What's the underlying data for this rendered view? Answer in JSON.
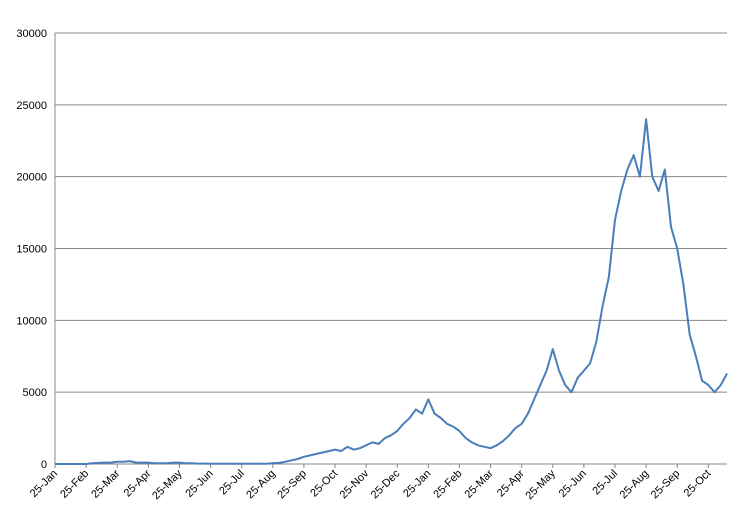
{
  "chart_data": {
    "type": "line",
    "categories": [
      "25-Jan",
      null,
      null,
      null,
      null,
      "25-Feb",
      null,
      null,
      null,
      null,
      "25-Mar",
      null,
      null,
      null,
      null,
      "25-Apr",
      null,
      null,
      null,
      null,
      "25-May",
      null,
      null,
      null,
      null,
      "25-Jun",
      null,
      null,
      null,
      null,
      "25-Jul",
      null,
      null,
      null,
      null,
      "25-Aug",
      null,
      null,
      null,
      null,
      "25-Sep",
      null,
      null,
      null,
      null,
      "25-Oct",
      null,
      null,
      null,
      null,
      "25-Nov",
      null,
      null,
      null,
      null,
      "25-Dec",
      null,
      null,
      null,
      null,
      "25-Jan",
      null,
      null,
      null,
      null,
      "25-Feb",
      null,
      null,
      null,
      null,
      "25-Mar",
      null,
      null,
      null,
      null,
      "25-Apr",
      null,
      null,
      null,
      null,
      "25-May",
      null,
      null,
      null,
      null,
      "25-Jun",
      null,
      null,
      null,
      null,
      "25-Jul",
      null,
      null,
      null,
      null,
      "25-Aug",
      null,
      null,
      null,
      null,
      "25-Sep",
      null,
      null,
      null,
      null,
      "25-Oct",
      null,
      null,
      null
    ],
    "values": [
      0,
      0,
      0,
      0,
      0,
      0,
      50,
      80,
      100,
      100,
      150,
      150,
      200,
      100,
      100,
      100,
      50,
      50,
      50,
      100,
      100,
      50,
      50,
      30,
      30,
      20,
      20,
      20,
      20,
      20,
      20,
      20,
      20,
      20,
      20,
      50,
      80,
      150,
      250,
      350,
      500,
      600,
      700,
      800,
      900,
      1000,
      900,
      1200,
      1000,
      1100,
      1300,
      1500,
      1400,
      1800,
      2000,
      2300,
      2800,
      3200,
      3800,
      3500,
      4500,
      3500,
      3200,
      2800,
      2600,
      2300,
      1800,
      1500,
      1300,
      1200,
      1100,
      1300,
      1600,
      2000,
      2500,
      2800,
      3500,
      4500,
      5500,
      6500,
      8000,
      6500,
      5500,
      5000,
      6000,
      6500,
      7000,
      8500,
      11000,
      13000,
      17000,
      19000,
      20500,
      21500,
      20000,
      24000,
      20000,
      19000,
      20500,
      16500,
      15000,
      12500,
      9000,
      7500,
      5800,
      5500,
      5000,
      5500,
      6300
    ],
    "color": "#4a7ebb",
    "ylim": [
      0,
      30000
    ],
    "yticks": [
      0,
      5000,
      10000,
      15000,
      20000,
      25000,
      30000
    ],
    "grid": true
  }
}
